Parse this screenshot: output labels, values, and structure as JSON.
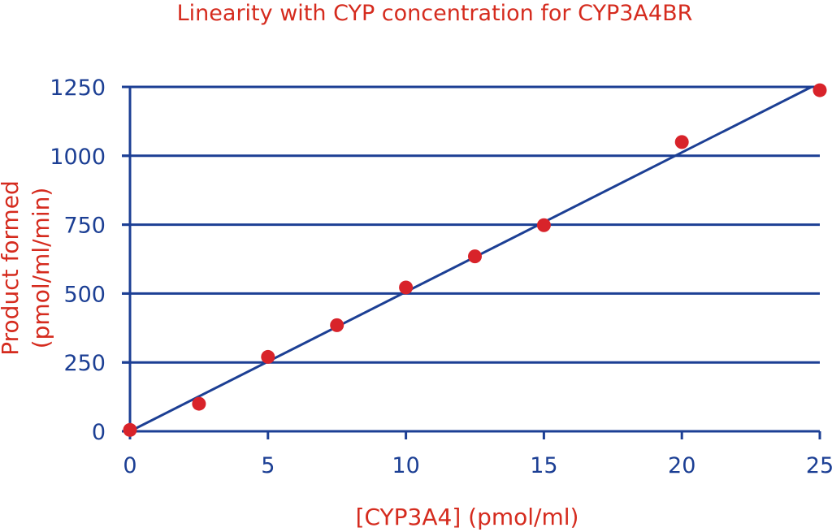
{
  "chart_data": {
    "type": "scatter",
    "title": "Linearity with CYP concentration for CYP3A4BR",
    "xlabel": "[CYP3A4] (pmol/ml)",
    "ylabel_line1": "Product formed",
    "ylabel_line2": "(pmol/ml/min)",
    "xlim": [
      0,
      25
    ],
    "ylim": [
      0,
      1250
    ],
    "xticks": [
      0,
      5,
      10,
      15,
      20,
      25
    ],
    "yticks": [
      0,
      250,
      500,
      750,
      1000,
      1250
    ],
    "grid": "horizontal",
    "series": [
      {
        "x": [
          0,
          2.5,
          5,
          7.5,
          10,
          12.5,
          15,
          20,
          25
        ],
        "y": [
          5,
          100,
          270,
          385,
          522,
          635,
          748,
          1050,
          1238
        ]
      }
    ],
    "fit_line": {
      "x": [
        0,
        24.7
      ],
      "y": [
        0,
        1250
      ]
    },
    "colors": {
      "title": "#d52b1e",
      "axis_label": "#d52b1e",
      "tick": "#1c3f94",
      "grid": "#1c3f94",
      "line": "#1c3f94",
      "point": "#d8232a"
    }
  }
}
